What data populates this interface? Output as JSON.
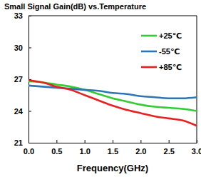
{
  "chart_data": {
    "type": "line",
    "title": "Small Signal Gain(dB) vs.Temperature",
    "x_label": "Frequency(GHz)",
    "x": [
      0,
      0.25,
      0.5,
      0.75,
      1.0,
      1.25,
      1.5,
      1.75,
      2.0,
      2.25,
      2.5,
      2.75,
      3.0
    ],
    "series": [
      {
        "name": "+25℃",
        "color": "#33cc33",
        "values": [
          26.8,
          26.7,
          26.5,
          26.3,
          26.0,
          25.6,
          25.2,
          24.9,
          24.6,
          24.4,
          24.3,
          24.2,
          24.0
        ]
      },
      {
        "name": "-55℃",
        "color": "#2e75b6",
        "values": [
          26.4,
          26.3,
          26.2,
          26.1,
          26.0,
          25.9,
          25.7,
          25.6,
          25.4,
          25.3,
          25.2,
          25.2,
          25.3
        ]
      },
      {
        "name": "+85℃",
        "color": "#e8201f",
        "values": [
          26.9,
          26.7,
          26.3,
          26.0,
          25.5,
          25.0,
          24.5,
          24.1,
          23.8,
          23.5,
          23.3,
          23.1,
          22.6
        ]
      }
    ],
    "xlim": [
      0,
      3
    ],
    "xticks": [
      {
        "value": 0,
        "label": "0.0"
      },
      0.5,
      {
        "value": 1,
        "label": "1.0"
      },
      1.5,
      {
        "value": 2,
        "label": "2.0"
      },
      2.5,
      {
        "value": 3,
        "label": "3.0"
      }
    ],
    "ylim": [
      21,
      33
    ],
    "yticks": [
      21,
      24,
      27,
      30,
      33
    ],
    "grid": false,
    "legend": "upper right"
  }
}
